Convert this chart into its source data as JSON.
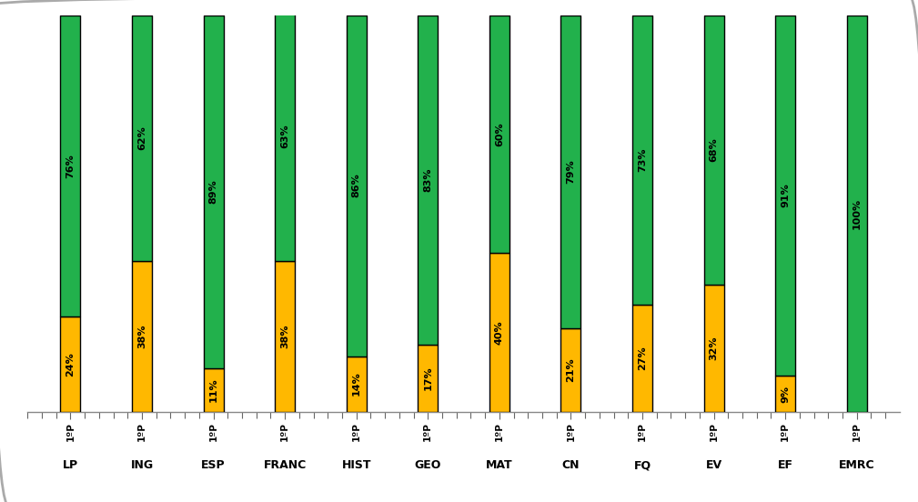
{
  "categories": [
    "LP",
    "ING",
    "ESP",
    "FRANC",
    "HIST",
    "GEO",
    "MAT",
    "CN",
    "FQ",
    "EV",
    "EF",
    "EMRC"
  ],
  "gold_pct": [
    24,
    38,
    11,
    38,
    14,
    17,
    40,
    21,
    27,
    32,
    9,
    0
  ],
  "green_pct": [
    76,
    62,
    89,
    63,
    86,
    83,
    60,
    79,
    73,
    68,
    91,
    100
  ],
  "gold_color": "#FFB800",
  "green_color": "#22B14C",
  "bar_width": 0.28,
  "xlabel_period": "1ºP",
  "background_color": "#FFFFFF",
  "border_color": "#AAAAAA",
  "text_color": "#000000",
  "fig_width": 10.09,
  "fig_height": 5.52,
  "dpi": 100,
  "ylim_max": 100,
  "bar_total": 100
}
